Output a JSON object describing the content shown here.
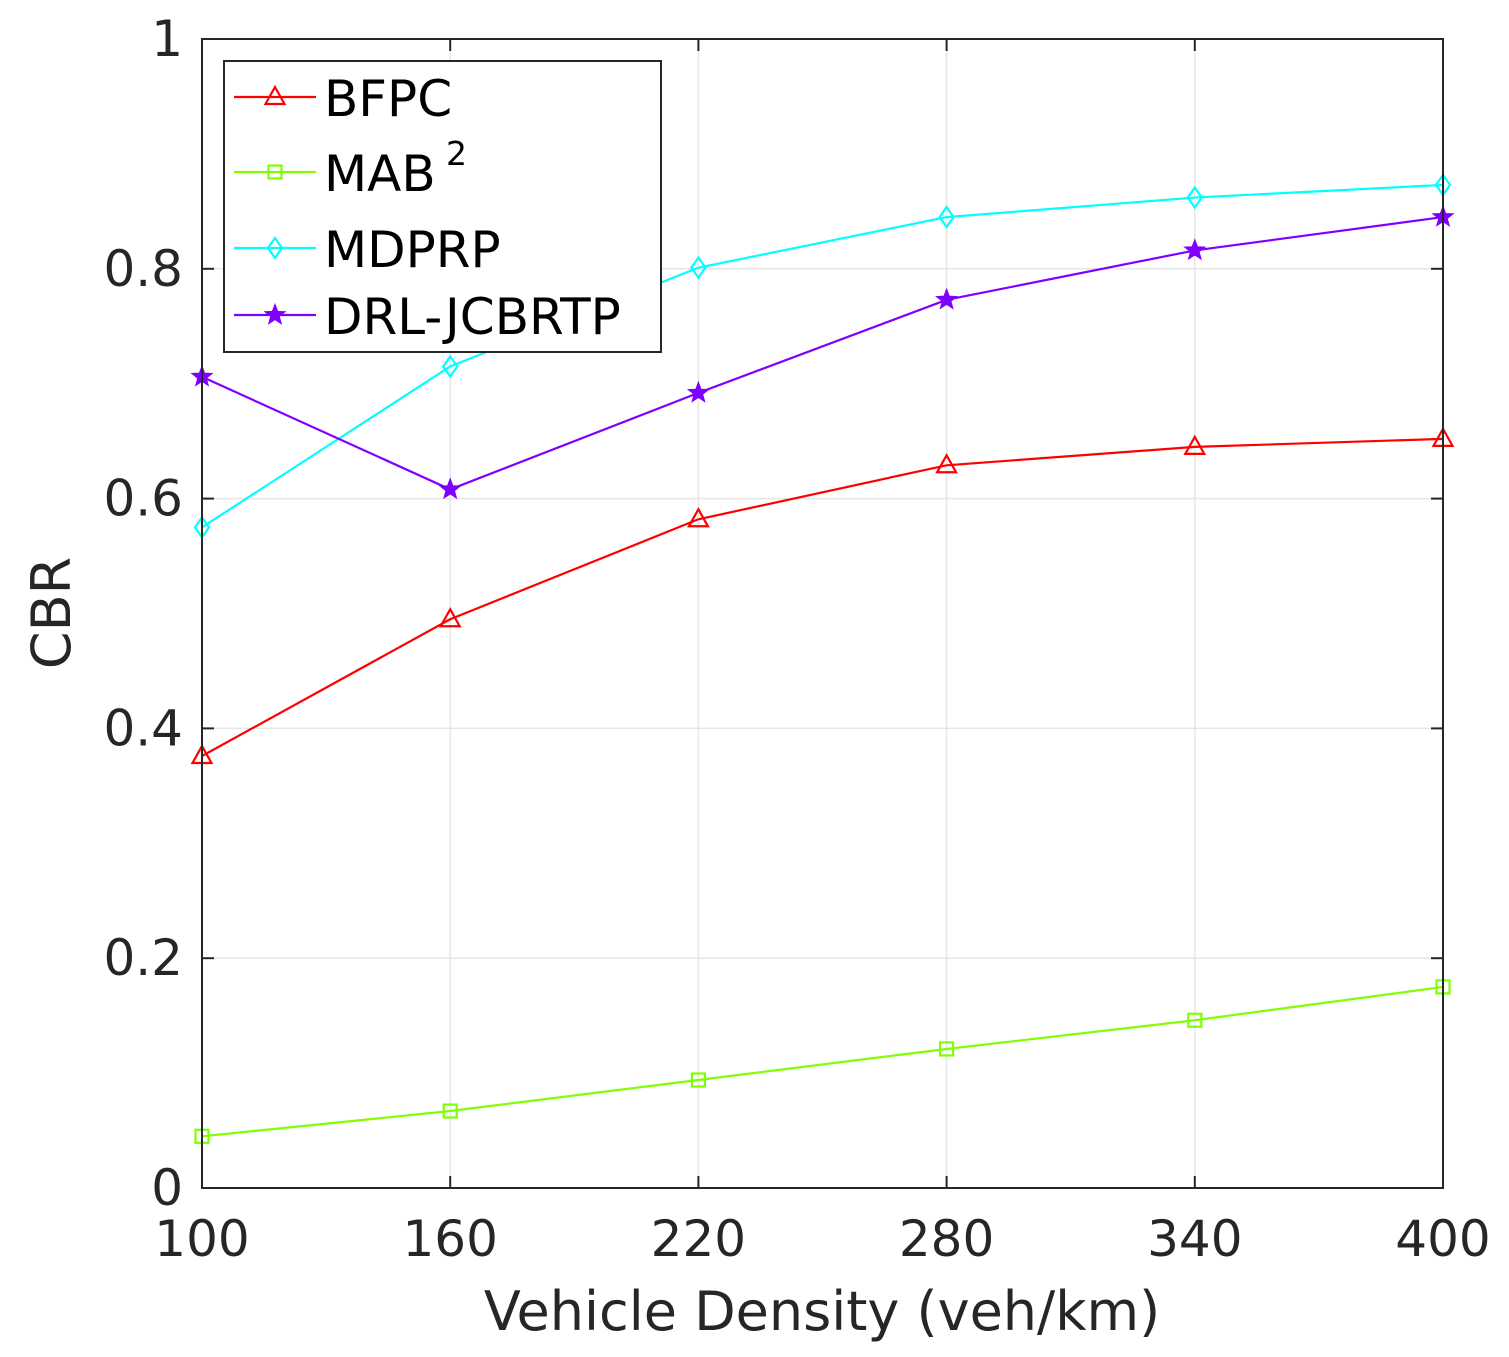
{
  "chart_data": {
    "type": "line",
    "title": "",
    "xlabel": "Vehicle Density (veh/km)",
    "ylabel": "CBR",
    "x": [
      100,
      160,
      220,
      280,
      340,
      400
    ],
    "xticks": [
      "100",
      "160",
      "220",
      "280",
      "340",
      "400"
    ],
    "yticks": [
      "0",
      "0.2",
      "0.4",
      "0.6",
      "0.8",
      "1"
    ],
    "xlim": [
      100,
      400
    ],
    "ylim": [
      0,
      1
    ],
    "grid": true,
    "legend_position": "top-left",
    "series": [
      {
        "name": "BFPC",
        "legend_main": "BFPC",
        "legend_sup": "",
        "color": "#ff0000",
        "marker": "triangle",
        "values": [
          0.376,
          0.495,
          0.582,
          0.629,
          0.645,
          0.652
        ]
      },
      {
        "name": "MAB2",
        "legend_main": "MAB",
        "legend_sup": "2",
        "color": "#7fff00",
        "marker": "square",
        "values": [
          0.045,
          0.067,
          0.094,
          0.121,
          0.146,
          0.175
        ]
      },
      {
        "name": "MDPRP",
        "legend_main": "MDPRP",
        "legend_sup": "",
        "color": "#00ffff",
        "marker": "diamond",
        "values": [
          0.575,
          0.715,
          0.801,
          0.845,
          0.862,
          0.873
        ]
      },
      {
        "name": "DRL-JCBRTP",
        "legend_main": "DRL-JCBRTP",
        "legend_sup": "",
        "color": "#8000ff",
        "marker": "star",
        "values": [
          0.706,
          0.608,
          0.692,
          0.773,
          0.816,
          0.845
        ]
      }
    ]
  }
}
